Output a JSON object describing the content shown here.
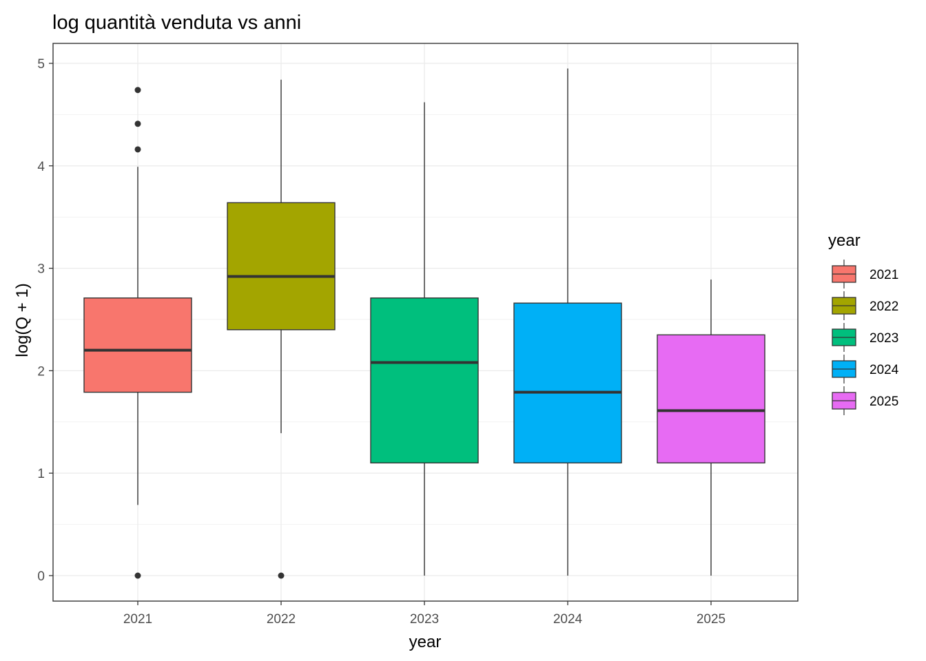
{
  "chart_data": {
    "type": "boxplot",
    "title": "log quantità venduta vs anni",
    "xlabel": "year",
    "ylabel": "log(Q + 1)",
    "ylim": [
      -0.25,
      5.2
    ],
    "yticks": [
      0,
      1,
      2,
      3,
      4,
      5
    ],
    "grid": true,
    "legend": {
      "title": "year",
      "position": "right"
    },
    "categories": [
      "2021",
      "2022",
      "2023",
      "2024",
      "2025"
    ],
    "boxes": [
      {
        "name": "2021",
        "color": "#F8766D",
        "min": 0.69,
        "q1": 1.79,
        "median": 2.2,
        "q3": 2.71,
        "max": 3.99,
        "outliers": [
          0,
          4.16,
          4.41,
          4.74
        ]
      },
      {
        "name": "2022",
        "color": "#A3A500",
        "min": 1.39,
        "q1": 2.4,
        "median": 2.92,
        "q3": 3.64,
        "max": 4.84,
        "outliers": [
          0
        ]
      },
      {
        "name": "2023",
        "color": "#00BF7D",
        "min": 0,
        "q1": 1.1,
        "median": 2.08,
        "q3": 2.71,
        "max": 4.62,
        "outliers": []
      },
      {
        "name": "2024",
        "color": "#00B0F6",
        "min": 0,
        "q1": 1.1,
        "median": 1.79,
        "q3": 2.66,
        "max": 4.95,
        "outliers": []
      },
      {
        "name": "2025",
        "color": "#E76BF3",
        "min": 0,
        "q1": 1.1,
        "median": 1.61,
        "q3": 2.35,
        "max": 2.89,
        "outliers": []
      }
    ]
  }
}
